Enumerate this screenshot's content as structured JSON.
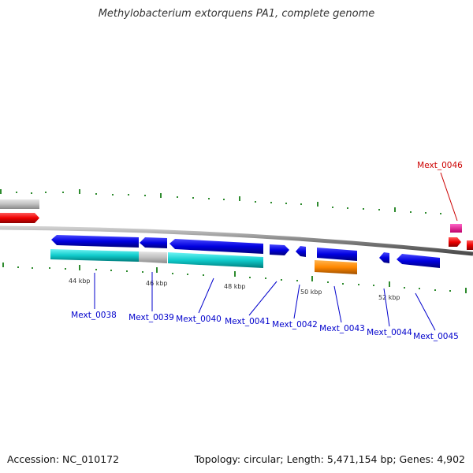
{
  "title": "Methylobacterium extorquens PA1, complete genome",
  "footer": {
    "accession": "Accession: NC_010172",
    "topology": "Topology: circular; Length: 5,471,154 bp; Genes: 4,902"
  },
  "scale_labels": [
    "44 kbp",
    "46 kbp",
    "48 kbp",
    "50 kbp",
    "52 kbp"
  ],
  "genes": [
    {
      "id": "Mext_0038",
      "color": "#0000cc"
    },
    {
      "id": "Mext_0039",
      "color": "#0000cc"
    },
    {
      "id": "Mext_0040",
      "color": "#0000cc"
    },
    {
      "id": "Mext_0041",
      "color": "#0000cc"
    },
    {
      "id": "Mext_0042",
      "color": "#0000cc"
    },
    {
      "id": "Mext_0043",
      "color": "#0000cc"
    },
    {
      "id": "Mext_0044",
      "color": "#0000cc"
    },
    {
      "id": "Mext_0045",
      "color": "#0000cc"
    },
    {
      "id": "Mext_0046",
      "color": "#cc0000"
    }
  ],
  "colors": {
    "cds": "#0000dd",
    "cds_highlight": "#e8004a",
    "rna": "#00cccc",
    "pseudo": "#bdbdbd",
    "misc": "#ff8800",
    "marker": "#e2007a",
    "tick": "#228b22",
    "backbone": "#777777"
  }
}
